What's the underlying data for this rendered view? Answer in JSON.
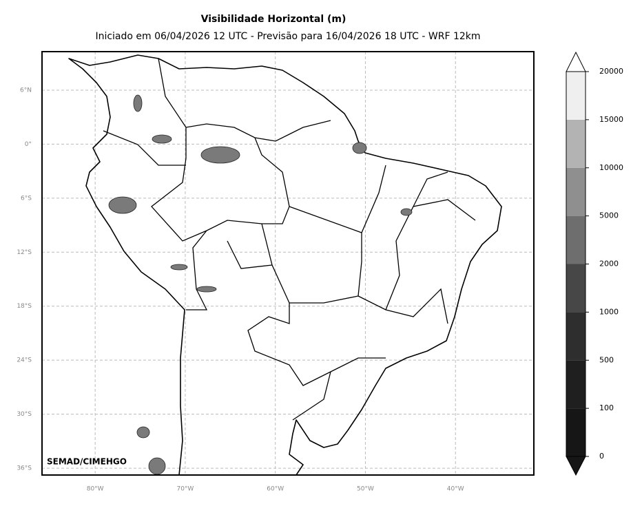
{
  "title": "Visibilidade Horizontal (m)",
  "subtitle": "Iniciado em 06/04/2026 12 UTC - Previsão para 16/04/2026 18 UTC - WRF 12km",
  "map": {
    "lonlim": [
      -85.9,
      -31.3
    ],
    "latlim": [
      -36.76,
      10.28
    ],
    "lat_ticks": [
      {
        "value": 6,
        "label": "6°N"
      },
      {
        "value": 0,
        "label": "0°"
      },
      {
        "value": -6,
        "label": "6°S"
      },
      {
        "value": -12,
        "label": "12°S"
      },
      {
        "value": -18,
        "label": "18°S"
      },
      {
        "value": -24,
        "label": "24°S"
      },
      {
        "value": -30,
        "label": "30°S"
      },
      {
        "value": -36,
        "label": "36°S"
      }
    ],
    "lon_ticks": [
      {
        "value": -80,
        "label": "80°W"
      },
      {
        "value": -70,
        "label": "70°W"
      },
      {
        "value": -60,
        "label": "60°W"
      },
      {
        "value": -50,
        "label": "50°W"
      },
      {
        "value": -40,
        "label": "40°W"
      }
    ],
    "credit": "SEMAD/CIMEHGO"
  },
  "colorbar": {
    "levels": [
      0,
      100,
      500,
      1000,
      2000,
      5000,
      10000,
      15000,
      20000
    ],
    "colors": [
      "#161616",
      "#1f1f1f",
      "#2e2e2e",
      "#474747",
      "#6e6e6e",
      "#8f8f8f",
      "#b3b3b3",
      "#efefef"
    ]
  }
}
